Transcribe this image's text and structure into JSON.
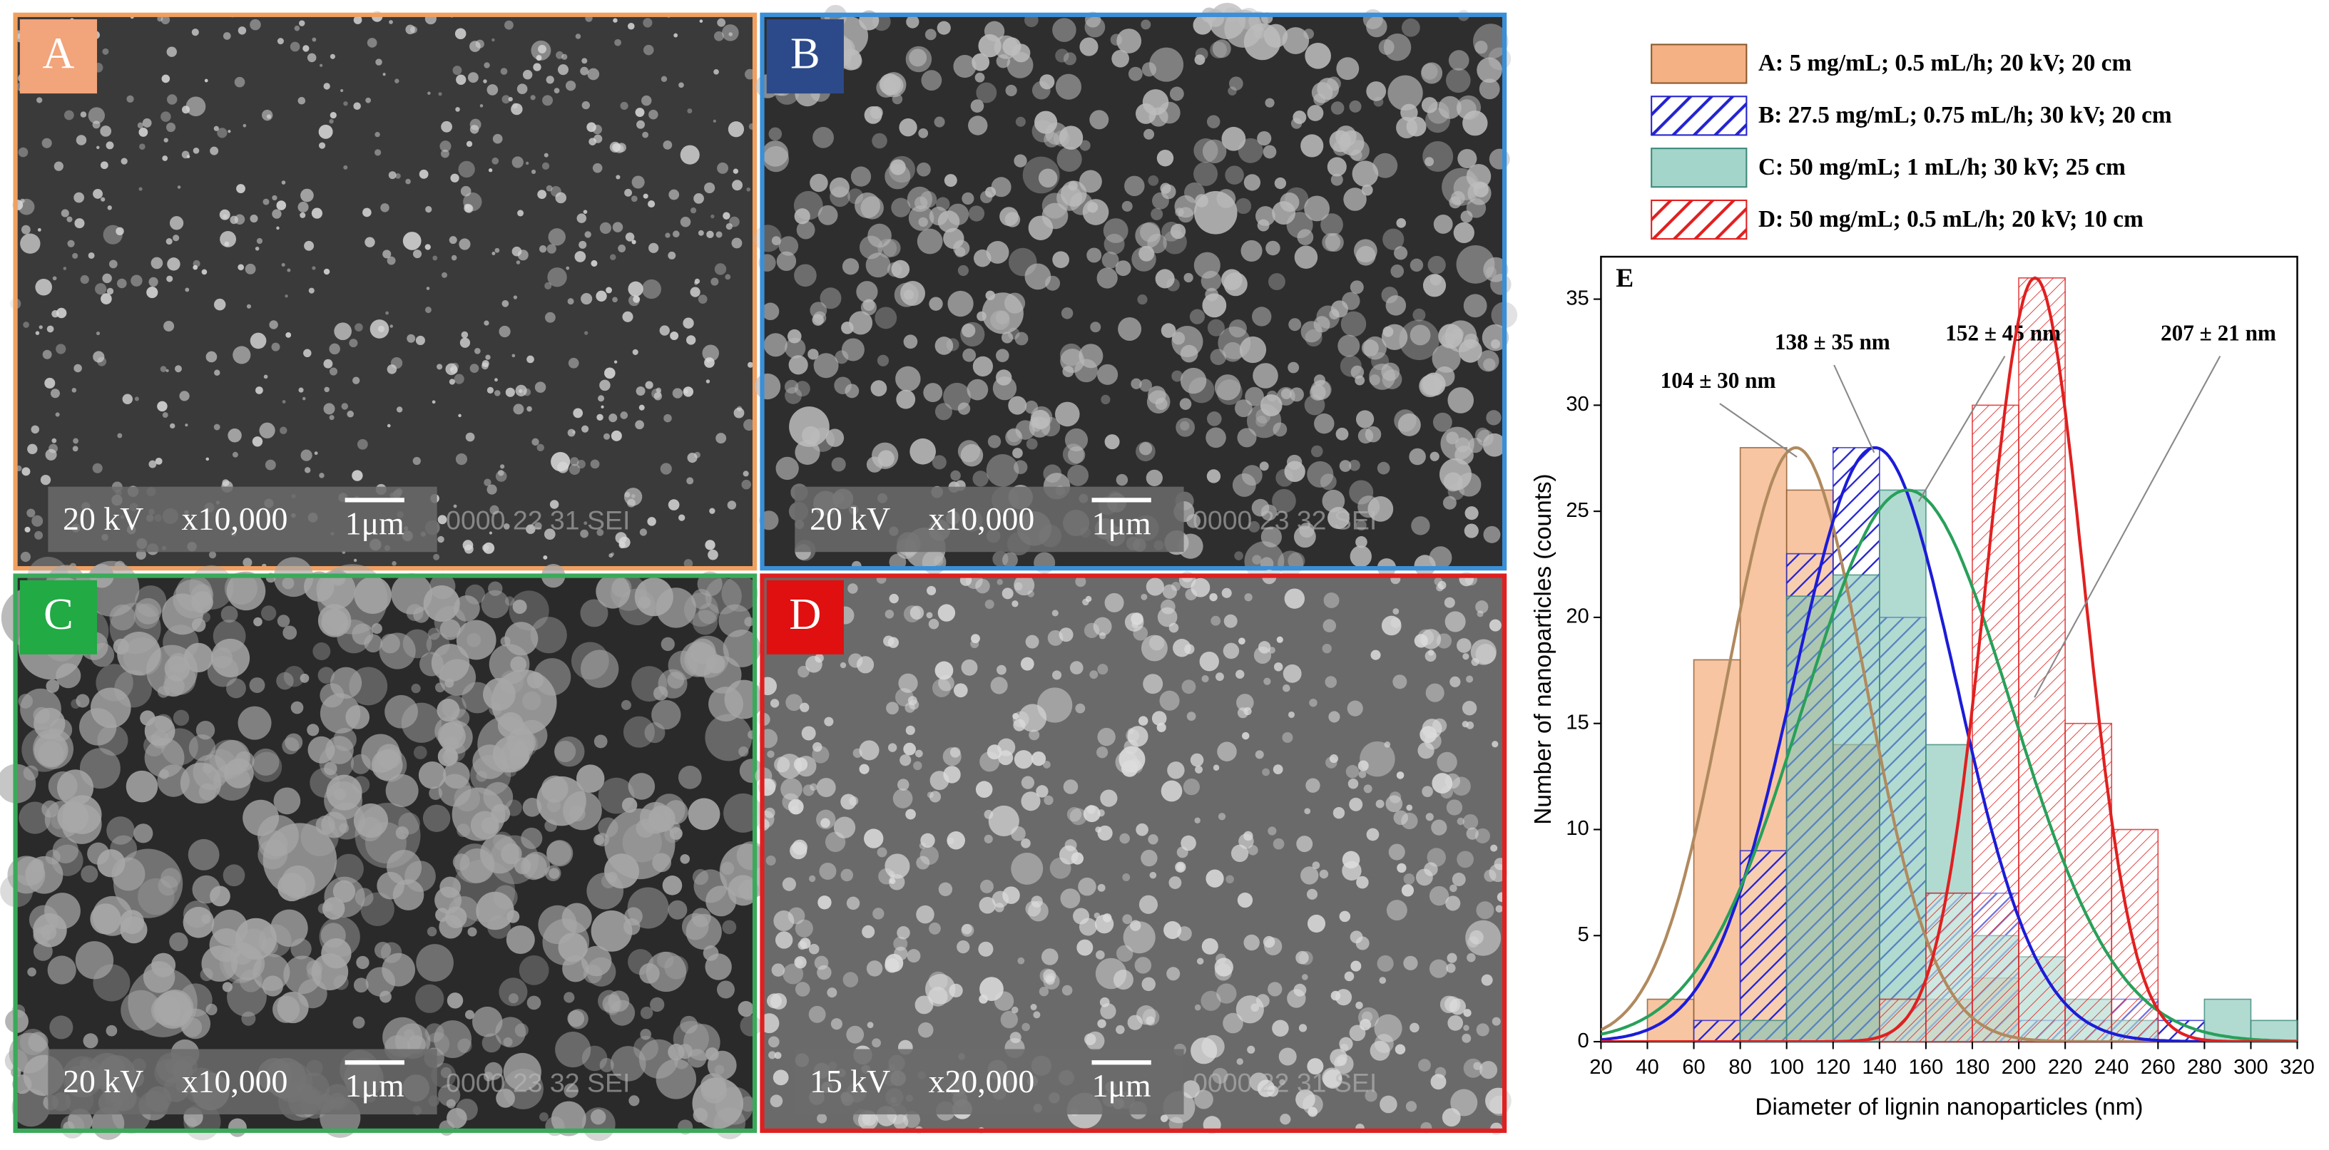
{
  "chart_data": {
    "type": "histogram",
    "panel_label": "E",
    "x_label": "Diameter of lignin nanoparticles (nm)",
    "y_label": "Number of nanoparticles (counts)",
    "bins": [
      20,
      40,
      60,
      80,
      100,
      120,
      140,
      160,
      180,
      200,
      220,
      240,
      260,
      280,
      300,
      320
    ],
    "xlim": [
      20,
      320
    ],
    "ylim": [
      0,
      37
    ],
    "xticks": [
      20,
      40,
      60,
      80,
      100,
      120,
      140,
      160,
      180,
      200,
      220,
      240,
      260,
      280,
      300,
      320
    ],
    "yticks": [
      0,
      5,
      10,
      15,
      20,
      25,
      30,
      35
    ],
    "legend_position": "top",
    "series": [
      {
        "name": "A: 5 mg/mL; 0.5 mL/h; 20 kV; 20 cm",
        "color": "#f4b183",
        "values": [
          0,
          2,
          18,
          28,
          26,
          14,
          2,
          2,
          3,
          0,
          0,
          0,
          0,
          0,
          0
        ]
      },
      {
        "name": "B: 27.5 mg/mL; 0.75 mL/h; 30 kV; 20 cm",
        "color": "#2323d0",
        "values": [
          0,
          0,
          1,
          9,
          23,
          28,
          20,
          7,
          7,
          1,
          1,
          2,
          1,
          0,
          0
        ]
      },
      {
        "name": "C: 50 mg/mL; 1 mL/h; 30 kV; 25 cm",
        "color": "#7dc3b3",
        "values": [
          0,
          0,
          0,
          1,
          21,
          22,
          26,
          14,
          5,
          4,
          2,
          1,
          0,
          2,
          1
        ]
      },
      {
        "name": "D: 50 mg/mL; 0.5 mL/h; 20 kV; 10 cm",
        "color": "#e02020",
        "values": [
          0,
          0,
          0,
          0,
          0,
          0,
          2,
          7,
          30,
          36,
          15,
          10,
          0,
          0,
          0
        ]
      }
    ],
    "fits": [
      {
        "label": "104 ± 30 nm",
        "mean": 104,
        "sd": 30,
        "peak": 28,
        "color": "#b08a5e"
      },
      {
        "label": "138 ± 35 nm",
        "mean": 138,
        "sd": 35,
        "peak": 28,
        "color": "#1c1cd8"
      },
      {
        "label": "152 ± 45 nm",
        "mean": 152,
        "sd": 45,
        "peak": 26,
        "color": "#28a05a"
      },
      {
        "label": "207 ± 21 nm",
        "mean": 207,
        "sd": 21,
        "peak": 36,
        "color": "#e02020"
      }
    ]
  },
  "panels": [
    {
      "label": "A",
      "voltage": "20 kV",
      "magnification": "x10,000",
      "scale": "1μm",
      "code": "0000 22 31 SEI"
    },
    {
      "label": "B",
      "voltage": "20 kV",
      "magnification": "x10,000",
      "scale": "1μm",
      "code": "0000 23 32 SEI"
    },
    {
      "label": "C",
      "voltage": "20 kV",
      "magnification": "x10,000",
      "scale": "1μm",
      "code": "0000 23 32 SEI"
    },
    {
      "label": "D",
      "voltage": "15 kV",
      "magnification": "x20,000",
      "scale": "1μm",
      "code": "0000 22 31 SEI"
    }
  ]
}
